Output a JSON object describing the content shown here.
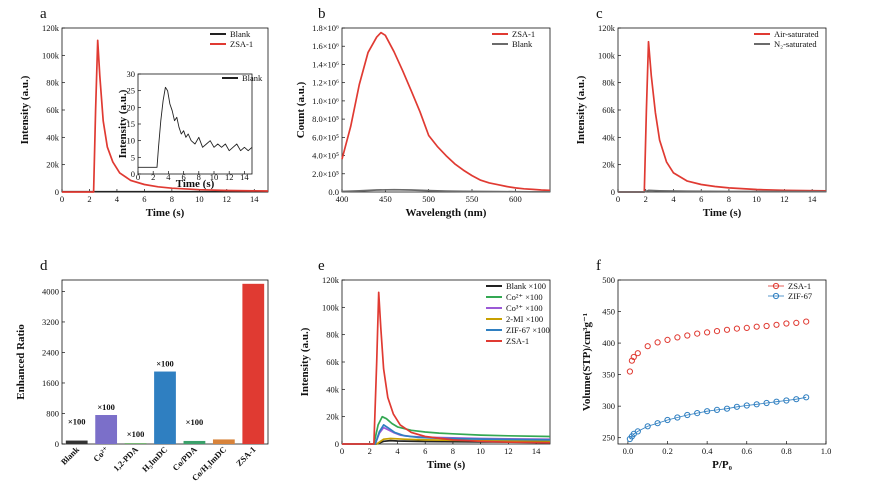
{
  "colors": {
    "black": "#222222",
    "red": "#e03a32",
    "green": "#34a853",
    "purple": "#9b59d6",
    "orange": "#c8a000",
    "blue": "#2f7fc1",
    "gray": "#6b6b6b",
    "bar_blank": "#333333",
    "bar_co": "#7b6fc9",
    "bar_pda": "#4ea04a",
    "bar_h3": "#2f7fc1",
    "bar_copda": "#3aa06a",
    "bar_coh3": "#d8833a",
    "bar_zsa": "#e03a32"
  },
  "chart_data": [
    {
      "id": "a",
      "panel_label": "a",
      "type": "line",
      "xlabel": "Time (s)",
      "ylabel": "Intensity (a.u.)",
      "xlim": [
        0,
        15
      ],
      "ylim": [
        0,
        120000
      ],
      "xticks": [
        0,
        2,
        4,
        6,
        8,
        10,
        12,
        14
      ],
      "xtick_labels": [
        "0",
        "2",
        "4",
        "6",
        "8",
        "10",
        "12",
        "14"
      ],
      "yticks": [
        0,
        20000,
        40000,
        60000,
        80000,
        100000,
        120000
      ],
      "ytick_labels": [
        "0",
        "20k",
        "40k",
        "60k",
        "80k",
        "100k",
        "120k"
      ],
      "legend_position": "top-right",
      "series": [
        {
          "name": "Blank",
          "color": "black",
          "x": [
            0,
            15
          ],
          "y": [
            200,
            200
          ]
        },
        {
          "name": "ZSA-1",
          "color": "red",
          "x": [
            0,
            2.3,
            2.45,
            2.6,
            2.75,
            3.0,
            3.3,
            3.7,
            4.2,
            5.0,
            6.0,
            7.0,
            8.0,
            10.0,
            12.0,
            15.0
          ],
          "y": [
            0,
            0,
            60000,
            111000,
            85000,
            52000,
            33000,
            22000,
            14000,
            8500,
            5500,
            3800,
            2800,
            1700,
            1100,
            700
          ]
        }
      ],
      "inset": {
        "xlabel": "Time (s)",
        "ylabel": "Intensity (a.u.)",
        "xlim": [
          0,
          15
        ],
        "ylim": [
          0,
          30
        ],
        "xticks": [
          0,
          2,
          4,
          6,
          8,
          10,
          12,
          14
        ],
        "xtick_labels": [
          "0",
          "2",
          "4",
          "6",
          "8",
          "10",
          "12",
          "14"
        ],
        "yticks": [
          0,
          5,
          10,
          15,
          20,
          25,
          30
        ],
        "ytick_labels": [
          "0",
          "5",
          "10",
          "15",
          "20",
          "25",
          "30"
        ],
        "series": [
          {
            "name": "Blank",
            "color": "black",
            "x": [
              0,
              2.5,
              2.7,
              3.0,
              3.3,
              3.6,
              3.9,
              4.2,
              4.5,
              4.8,
              5.1,
              5.4,
              5.7,
              6.0,
              6.3,
              6.6,
              7.0,
              7.5,
              8.0,
              8.5,
              9.0,
              9.5,
              10.0,
              10.5,
              11.0,
              11.5,
              12.0,
              12.5,
              13.0,
              13.5,
              14.0,
              14.5,
              15.0
            ],
            "y": [
              2,
              2,
              8,
              16,
              22,
              26,
              25,
              21,
              19,
              16,
              17,
              14,
              12,
              13,
              11,
              12,
              10,
              9,
              11,
              8,
              9,
              10,
              8,
              9,
              8,
              9,
              7,
              8,
              9,
              7,
              8,
              7,
              8
            ]
          }
        ]
      }
    },
    {
      "id": "b",
      "panel_label": "b",
      "type": "line",
      "xlabel": "Wavelength (nm)",
      "ylabel": "Count (a.u.)",
      "xlim": [
        400,
        640
      ],
      "ylim": [
        0,
        1800000
      ],
      "xticks": [
        400,
        450,
        500,
        550,
        600
      ],
      "xtick_labels": [
        "400",
        "450",
        "500",
        "550",
        "600"
      ],
      "yticks": [
        0,
        200000,
        400000,
        600000,
        800000,
        1000000,
        1200000,
        1400000,
        1600000,
        1800000
      ],
      "ytick_labels": [
        "0.0",
        "2.0×10⁵",
        "4.0×10⁵",
        "6.0×10⁵",
        "8.0×10⁵",
        "1.0×10⁶",
        "1.2×10⁶",
        "1.4×10⁶",
        "1.6×10⁶",
        "1.8×10⁶"
      ],
      "legend_position": "top-right",
      "series": [
        {
          "name": "ZSA-1",
          "color": "red",
          "x": [
            400,
            410,
            420,
            430,
            440,
            445,
            450,
            460,
            470,
            480,
            490,
            500,
            510,
            520,
            530,
            540,
            550,
            560,
            570,
            580,
            590,
            600,
            610,
            620,
            630,
            640
          ],
          "y": [
            360000,
            720000,
            1180000,
            1530000,
            1700000,
            1750000,
            1720000,
            1540000,
            1330000,
            1110000,
            880000,
            620000,
            500000,
            400000,
            310000,
            240000,
            180000,
            130000,
            100000,
            80000,
            60000,
            45000,
            35000,
            28000,
            22000,
            18000
          ]
        },
        {
          "name": "Blank",
          "color": "gray",
          "x": [
            400,
            420,
            440,
            460,
            480,
            500,
            520,
            540,
            560,
            580,
            600,
            620,
            640
          ],
          "y": [
            5000,
            12000,
            22000,
            25000,
            22000,
            15000,
            10000,
            7000,
            5000,
            4000,
            3000,
            2500,
            2000
          ]
        }
      ]
    },
    {
      "id": "c",
      "panel_label": "c",
      "type": "line",
      "xlabel": "Time (s)",
      "ylabel": "Intensity (a.u.)",
      "xlim": [
        0,
        15
      ],
      "ylim": [
        0,
        120000
      ],
      "xticks": [
        0,
        2,
        4,
        6,
        8,
        10,
        12,
        14
      ],
      "xtick_labels": [
        "0",
        "2",
        "4",
        "6",
        "8",
        "10",
        "12",
        "14"
      ],
      "yticks": [
        0,
        20000,
        40000,
        60000,
        80000,
        100000,
        120000
      ],
      "ytick_labels": [
        "0",
        "20k",
        "40k",
        "60k",
        "80k",
        "100k",
        "120k"
      ],
      "legend_position": "top-right",
      "series": [
        {
          "name": "Air-saturated",
          "color": "red",
          "x": [
            0,
            1.9,
            2.05,
            2.2,
            2.4,
            2.7,
            3.0,
            3.5,
            4.0,
            5.0,
            6.0,
            7.0,
            8.0,
            10.0,
            12.0,
            15.0
          ],
          "y": [
            0,
            0,
            60000,
            110000,
            85000,
            58000,
            38000,
            22000,
            14000,
            8000,
            5500,
            4000,
            3000,
            1800,
            1200,
            800
          ]
        },
        {
          "name": "N₂-saturated",
          "color": "gray",
          "x": [
            0,
            1.9,
            2.2,
            3.0,
            5.0,
            8.0,
            15.0
          ],
          "y": [
            0,
            0,
            1200,
            900,
            600,
            400,
            300
          ]
        }
      ]
    },
    {
      "id": "d",
      "panel_label": "d",
      "type": "bar",
      "ylabel": "Enhanced Ratio",
      "ylim": [
        0,
        4300
      ],
      "yticks": [
        0,
        800,
        1600,
        2400,
        3200,
        4000
      ],
      "ytick_labels": [
        "0",
        "800",
        "1600",
        "2400",
        "3200",
        "4000"
      ],
      "categories": [
        "Blank",
        "Co²⁺",
        "1,2-PDA",
        "H₃ImDC",
        "Co/PDA",
        "Co/H₃ImDC",
        "ZSA-1"
      ],
      "values": [
        90,
        760,
        20,
        1900,
        80,
        120,
        4200
      ],
      "bar_colors": [
        "bar_blank",
        "bar_co",
        "bar_pda",
        "bar_h3",
        "bar_copda",
        "bar_coh3",
        "bar_zsa"
      ],
      "annotations": [
        "×100",
        "×100",
        "×100",
        "×100",
        "×100",
        "",
        ""
      ]
    },
    {
      "id": "e",
      "panel_label": "e",
      "type": "line",
      "xlabel": "Time (s)",
      "ylabel": "Intensity (a.u.)",
      "xlim": [
        0,
        15
      ],
      "ylim": [
        0,
        120000
      ],
      "xticks": [
        0,
        2,
        4,
        6,
        8,
        10,
        12,
        14
      ],
      "xtick_labels": [
        "0",
        "2",
        "4",
        "6",
        "8",
        "10",
        "12",
        "14"
      ],
      "yticks": [
        0,
        20000,
        40000,
        60000,
        80000,
        100000,
        120000
      ],
      "ytick_labels": [
        "0",
        "20k",
        "40k",
        "60k",
        "80k",
        "100k",
        "120k"
      ],
      "legend_position": "top-right",
      "series": [
        {
          "name": "Blank ×100",
          "color": "black",
          "x": [
            0,
            2.5,
            3.0,
            3.5,
            4.0,
            6.0,
            10.0,
            15.0
          ],
          "y": [
            0,
            0,
            2000,
            2500,
            2200,
            1800,
            1500,
            1300
          ]
        },
        {
          "name": "Co²⁺ ×100",
          "color": "green",
          "x": [
            0,
            2.3,
            2.6,
            2.9,
            3.2,
            3.6,
            4.0,
            5.0,
            6.0,
            7.0,
            8.0,
            10.0,
            12.0,
            15.0
          ],
          "y": [
            0,
            0,
            14000,
            20000,
            18500,
            15000,
            12500,
            10000,
            8800,
            8000,
            7500,
            6500,
            6000,
            5500
          ]
        },
        {
          "name": "Co³⁺ ×100",
          "color": "purple",
          "x": [
            0,
            2.4,
            2.7,
            3.0,
            3.3,
            3.7,
            4.2,
            5.0,
            6.0,
            8.0,
            10.0,
            12.0,
            15.0
          ],
          "y": [
            0,
            0,
            8000,
            12000,
            10500,
            8500,
            6500,
            5500,
            5000,
            4500,
            4000,
            3800,
            3500
          ]
        },
        {
          "name": "2-MI ×100",
          "color": "orange",
          "x": [
            0,
            2.5,
            3.0,
            3.5,
            4.5,
            6.0,
            10.0,
            15.0
          ],
          "y": [
            0,
            0,
            3500,
            4000,
            3500,
            3000,
            2500,
            2200
          ]
        },
        {
          "name": "ZIF-67 ×100",
          "color": "blue",
          "x": [
            0,
            2.4,
            2.7,
            3.0,
            3.3,
            3.8,
            4.5,
            5.5,
            7.0,
            9.0,
            12.0,
            15.0
          ],
          "y": [
            0,
            0,
            9000,
            14000,
            12000,
            8500,
            6000,
            4800,
            4200,
            3700,
            3300,
            3000
          ]
        },
        {
          "name": "ZSA-1",
          "color": "red",
          "x": [
            0,
            2.3,
            2.5,
            2.65,
            2.8,
            3.0,
            3.3,
            3.7,
            4.2,
            5.0,
            6.0,
            8.0,
            10.0,
            12.0,
            15.0
          ],
          "y": [
            0,
            0,
            60000,
            111000,
            85000,
            55000,
            34000,
            22000,
            14000,
            8500,
            5500,
            3000,
            2000,
            1300,
            900
          ]
        }
      ]
    },
    {
      "id": "f",
      "panel_label": "f",
      "type": "scatter",
      "xlabel": "P/P₀",
      "ylabel": "Volume(STP)/cm³g⁻¹",
      "xlim": [
        -0.05,
        1.0
      ],
      "ylim": [
        240,
        500
      ],
      "xticks": [
        0.0,
        0.2,
        0.4,
        0.6,
        0.8,
        1.0
      ],
      "xtick_labels": [
        "0.0",
        "0.2",
        "0.4",
        "0.6",
        "0.8",
        "1.0"
      ],
      "yticks": [
        250,
        300,
        350,
        400,
        450,
        500
      ],
      "ytick_labels": [
        "250",
        "300",
        "350",
        "400",
        "450",
        "500"
      ],
      "legend_position": "top-right",
      "series": [
        {
          "name": "ZSA-1",
          "color": "red",
          "line": false,
          "x": [
            0.01,
            0.02,
            0.03,
            0.05,
            0.1,
            0.15,
            0.2,
            0.25,
            0.3,
            0.35,
            0.4,
            0.45,
            0.5,
            0.55,
            0.6,
            0.65,
            0.7,
            0.75,
            0.8,
            0.85,
            0.9
          ],
          "y": [
            355,
            372,
            378,
            384,
            395,
            401,
            405,
            409,
            412,
            415,
            417,
            419,
            421,
            423,
            424,
            426,
            427,
            429,
            431,
            432,
            434
          ]
        },
        {
          "name": "ZIF-67",
          "color": "blue",
          "line": true,
          "x": [
            0.01,
            0.02,
            0.03,
            0.05,
            0.1,
            0.15,
            0.2,
            0.25,
            0.3,
            0.35,
            0.4,
            0.45,
            0.5,
            0.55,
            0.6,
            0.65,
            0.7,
            0.75,
            0.8,
            0.85,
            0.9
          ],
          "y": [
            248,
            252,
            256,
            260,
            268,
            273,
            278,
            282,
            286,
            289,
            292,
            294,
            296,
            299,
            301,
            303,
            305,
            307,
            309,
            311,
            314
          ]
        }
      ]
    }
  ]
}
